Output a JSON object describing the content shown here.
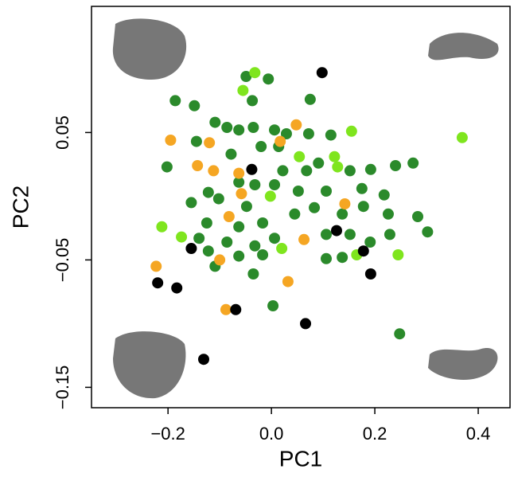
{
  "chart_data": {
    "type": "scatter",
    "x_label": "PC1",
    "y_label": "PC2",
    "xlim": [
      -0.348,
      0.4615
    ],
    "ylim": [
      -0.166,
      0.149
    ],
    "xticks": [
      {
        "value": -0.2,
        "label": "−0.2"
      },
      {
        "value": 0,
        "label": "0.0"
      },
      0.2,
      0.4
    ],
    "yticks": [
      {
        "value": -0.15,
        "label": "−0.15"
      },
      {
        "value": -0.05,
        "label": "−0.05"
      },
      0.05
    ],
    "series": [
      {
        "color": "#2b8a2b",
        "x": [
          -0.049,
          -0.006,
          -0.186,
          -0.149,
          -0.037,
          0.075,
          -0.109,
          -0.086,
          -0.063,
          -0.035,
          0.006,
          0.029,
          0.072,
          0.115,
          -0.145,
          -0.02,
          0.014,
          -0.078,
          0.091,
          -0.202,
          -0.063,
          -0.032,
          0.022,
          0.068,
          0.152,
          0.192,
          0.24,
          0.274,
          -0.122,
          -0.102,
          0.006,
          0.052,
          0.106,
          0.175,
          0.218,
          -0.155,
          -0.048,
          0.083,
          0.137,
          0.178,
          0.226,
          0.283,
          0.302,
          -0.125,
          -0.063,
          -0.017,
          0.045,
          0.106,
          0.152,
          -0.14,
          -0.086,
          -0.032,
          0.006,
          0.229,
          -0.122,
          -0.063,
          -0.017,
          0.106,
          0.137,
          0.191,
          -0.035,
          0.003,
          0.248,
          -0.109
        ],
        "y": [
          0.094,
          0.092,
          0.075,
          0.071,
          0.075,
          0.076,
          0.058,
          0.054,
          0.052,
          0.054,
          0.052,
          0.049,
          0.049,
          0.048,
          0.043,
          0.039,
          0.039,
          0.033,
          0.026,
          0.023,
          0.011,
          0.009,
          0.02,
          0.02,
          0.02,
          0.021,
          0.024,
          0.026,
          0.003,
          -0.002,
          0.009,
          0.004,
          0.004,
          0.006,
          0.001,
          -0.005,
          -0.008,
          -0.009,
          -0.014,
          -0.008,
          -0.014,
          -0.016,
          -0.028,
          -0.021,
          -0.024,
          -0.021,
          -0.014,
          -0.03,
          -0.03,
          -0.033,
          -0.036,
          -0.039,
          -0.033,
          -0.03,
          -0.043,
          -0.047,
          -0.046,
          -0.049,
          -0.048,
          -0.036,
          -0.061,
          -0.086,
          -0.108,
          -0.055
        ]
      },
      {
        "color": "#f5a623",
        "x": [
          -0.195,
          -0.12,
          -0.143,
          -0.112,
          -0.063,
          -0.058,
          -0.082,
          -0.1,
          -0.223,
          -0.088,
          0.032,
          0.063,
          0.048,
          0.142,
          0.017
        ],
        "y": [
          0.044,
          0.042,
          0.024,
          0.02,
          0.018,
          0.002,
          -0.016,
          -0.05,
          -0.055,
          -0.089,
          -0.067,
          -0.034,
          0.056,
          -0.006,
          0.043
        ]
      },
      {
        "color": "#7fe51e",
        "x": [
          0.369,
          -0.032,
          -0.055,
          0.155,
          0.122,
          0.128,
          -0.002,
          -0.212,
          -0.174,
          0.245,
          0.02,
          0.165,
          0.054
        ],
        "y": [
          0.046,
          0.097,
          0.083,
          0.051,
          0.031,
          0.023,
          0,
          -0.024,
          -0.032,
          -0.046,
          -0.041,
          -0.046,
          0.031
        ]
      },
      {
        "color": "#000000",
        "x": [
          0.098,
          -0.038,
          0.126,
          0.178,
          0.192,
          -0.155,
          -0.22,
          -0.183,
          -0.069,
          0.066,
          -0.131
        ],
        "y": [
          0.097,
          0.021,
          -0.027,
          -0.043,
          -0.061,
          -0.041,
          -0.068,
          -0.072,
          -0.089,
          -0.1,
          -0.128
        ]
      }
    ]
  }
}
